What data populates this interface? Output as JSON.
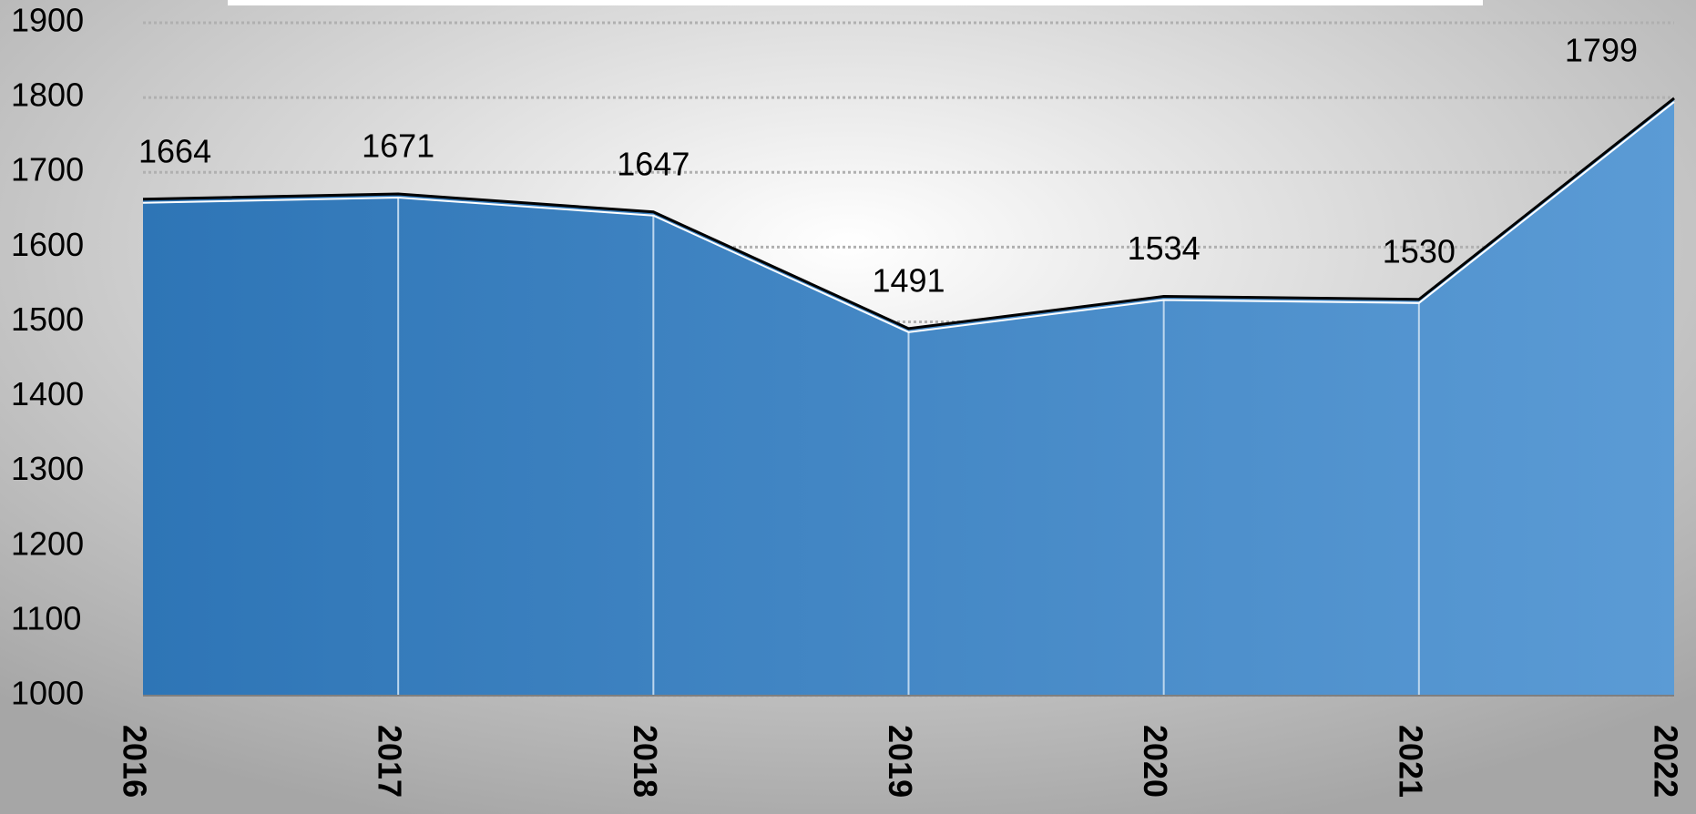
{
  "chart_data": {
    "type": "area",
    "categories": [
      "2016",
      "2017",
      "2018",
      "2019",
      "2020",
      "2021",
      "2022"
    ],
    "values": [
      1664,
      1671,
      1647,
      1491,
      1534,
      1530,
      1799
    ],
    "color": "#2e75b6",
    "ylim": [
      1000,
      1900
    ],
    "yticks": [
      1000,
      1100,
      1200,
      1300,
      1400,
      1500,
      1600,
      1700,
      1800,
      1900
    ],
    "grid": true
  }
}
